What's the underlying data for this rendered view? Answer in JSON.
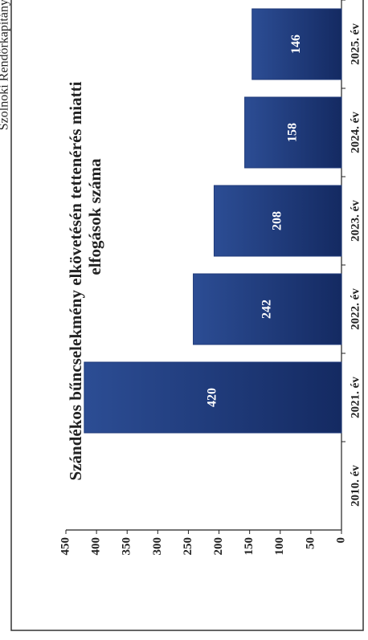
{
  "header": "Szolnoki Rendőrkapitányság",
  "chart_data": {
    "type": "bar",
    "title": [
      "Szándékos bűncselekmény elkövetésén tettenérés miatti",
      "elfogások száma"
    ],
    "categories": [
      "2010. év",
      "2021. év",
      "2022. év",
      "2023. év",
      "2024. év",
      "2025. év"
    ],
    "values": [
      null,
      420,
      242,
      208,
      158,
      146
    ],
    "color": "#1f3a7a",
    "ylim": [
      0,
      450
    ],
    "yticks": [
      0,
      50,
      100,
      150,
      200,
      250,
      300,
      350,
      400,
      450
    ]
  }
}
